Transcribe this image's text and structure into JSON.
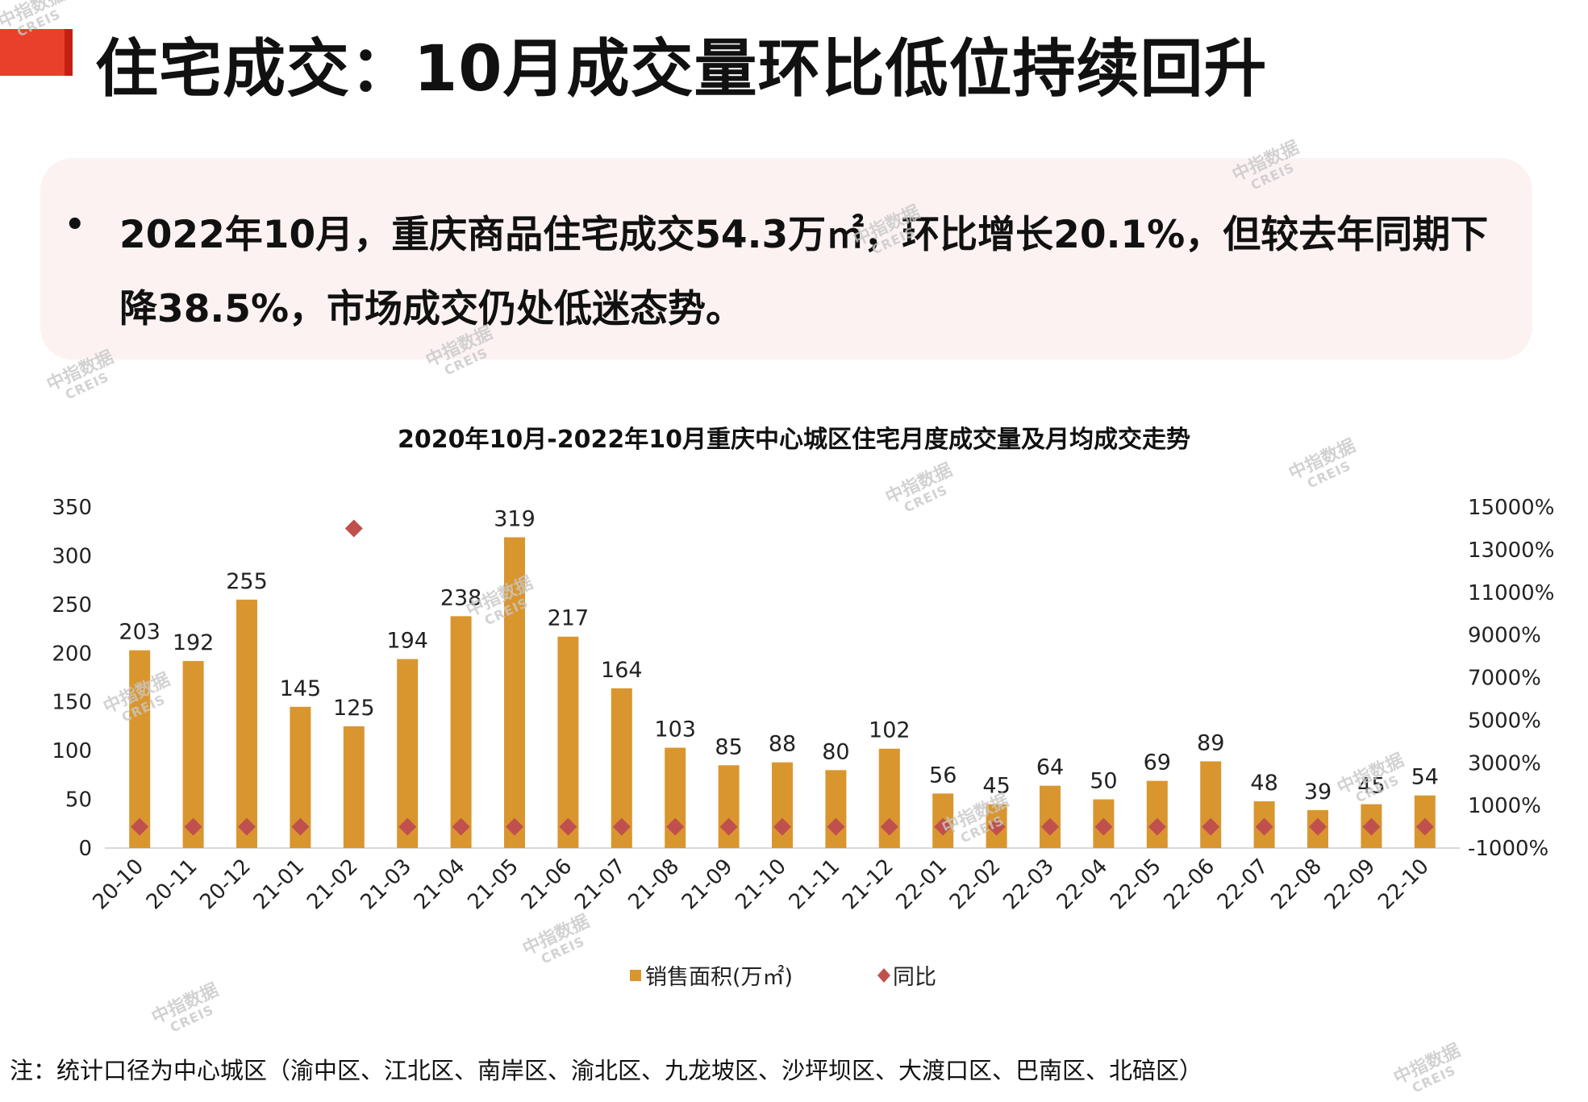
{
  "title": "住宅成交：10月成交量环比低位持续回升",
  "summary": "2022年10月，重庆商品住宅成交54.3万㎡，环比增长20.1%，但较去年同期下降38.5%，市场成交仍处低迷态势。",
  "bullet": "•",
  "note": "注：统计口径为中心城区（渝中区、江北区、南岸区、渝北区、九龙坡区、沙坪坝区、大渡口区、巴南区、北碚区）",
  "watermark": {
    "cn": "中指数据",
    "en": "CREIS"
  },
  "colors": {
    "bar": "#D9962F",
    "marker": "#C0504D",
    "accent": "#E8402A"
  },
  "chart_data": {
    "type": "bar",
    "title": "2020年10月-2022年10月重庆中心城区住宅月度成交量及月均成交走势",
    "categories": [
      "20-10",
      "20-11",
      "20-12",
      "21-01",
      "21-02",
      "21-03",
      "21-04",
      "21-05",
      "21-06",
      "21-07",
      "21-08",
      "21-09",
      "21-10",
      "21-11",
      "21-12",
      "22-01",
      "22-02",
      "22-03",
      "22-04",
      "22-05",
      "22-06",
      "22-07",
      "22-08",
      "22-09",
      "22-10"
    ],
    "series": [
      {
        "name": "销售面积(万㎡)",
        "type": "bar",
        "axis": "left",
        "values": [
          203,
          192,
          255,
          145,
          125,
          194,
          238,
          319,
          217,
          164,
          103,
          85,
          88,
          80,
          102,
          56,
          45,
          64,
          50,
          69,
          89,
          48,
          39,
          45,
          54
        ],
        "labels": [
          "203",
          "192",
          "255",
          "145",
          "125",
          "194",
          "238",
          "319",
          "217",
          "164",
          "103",
          "85",
          "88",
          "80",
          "102",
          "56",
          "45",
          "64",
          "50",
          "69",
          "89",
          "48",
          "39",
          "45",
          "54"
        ]
      },
      {
        "name": "同比",
        "type": "scatter",
        "axis": "right",
        "values": [
          0,
          0,
          0,
          0,
          14000,
          0,
          0,
          0,
          0,
          0,
          0,
          0,
          0,
          0,
          0,
          0,
          0,
          0,
          0,
          0,
          0,
          0,
          0,
          0,
          0
        ]
      }
    ],
    "y_left": {
      "min": 0,
      "max": 350,
      "ticks": [
        "0",
        "50",
        "100",
        "150",
        "200",
        "250",
        "300",
        "350"
      ]
    },
    "y_right": {
      "min": -1000,
      "max": 15000,
      "ticks": [
        "-1000%",
        "1000%",
        "3000%",
        "5000%",
        "7000%",
        "9000%",
        "11000%",
        "13000%",
        "15000%"
      ]
    },
    "legend": [
      "销售面积(万㎡)",
      "同比"
    ]
  }
}
